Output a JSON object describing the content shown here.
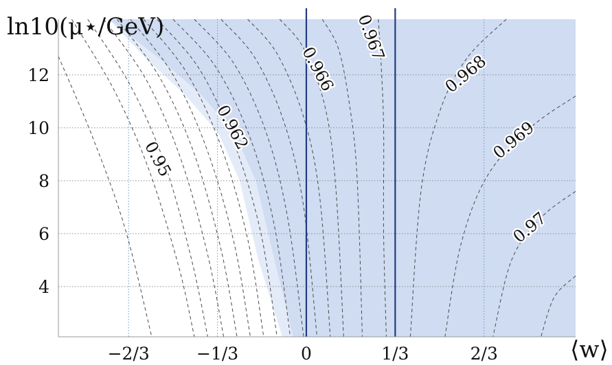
{
  "chart_data": {
    "type": "contour",
    "title": "",
    "xlabel": "⟨w⟩",
    "ylabel": "ln10(μ⋆/GeV)",
    "xlim": [
      -0.93,
      1.01
    ],
    "ylim": [
      2.1,
      14.1
    ],
    "x_ticks": [
      {
        "value": -0.6667,
        "label": "−2/3"
      },
      {
        "value": -0.3333,
        "label": "−1/3"
      },
      {
        "value": 0,
        "label": "0"
      },
      {
        "value": 0.3333,
        "label": "1/3"
      },
      {
        "value": 0.6667,
        "label": "2/3"
      }
    ],
    "y_ticks": [
      {
        "value": 4,
        "label": "4"
      },
      {
        "value": 6,
        "label": "6"
      },
      {
        "value": 8,
        "label": "8"
      },
      {
        "value": 10,
        "label": "10"
      },
      {
        "value": 12,
        "label": "12"
      }
    ],
    "grid": true,
    "boundaries_x": [
      0,
      0.3333
    ],
    "shading": {
      "color": "#cfdcf2",
      "light_color": "#e4ebf8",
      "region": [
        [
          -0.74,
          14.1
        ],
        [
          -0.55,
          12.6
        ],
        [
          -0.4,
          11.3
        ],
        [
          -0.27,
          9.8
        ],
        [
          -0.19,
          8.0
        ],
        [
          -0.12,
          5.0
        ],
        [
          -0.05,
          2.1
        ],
        [
          1.01,
          2.1
        ],
        [
          1.01,
          14.1
        ]
      ],
      "light_band": [
        [
          -0.74,
          14.1
        ],
        [
          -0.6,
          12.6
        ],
        [
          -0.46,
          11.3
        ],
        [
          -0.33,
          9.8
        ],
        [
          -0.25,
          8.0
        ],
        [
          -0.18,
          5.0
        ],
        [
          -0.09,
          2.1
        ],
        [
          -0.05,
          2.1
        ],
        [
          -0.12,
          5.0
        ],
        [
          -0.19,
          8.0
        ],
        [
          -0.27,
          9.8
        ],
        [
          -0.4,
          11.3
        ],
        [
          -0.55,
          12.6
        ]
      ]
    },
    "contours": [
      {
        "points": [
          [
            -0.93,
            12.7
          ],
          [
            -0.8,
            9.6
          ],
          [
            -0.68,
            6.2
          ],
          [
            -0.58,
            2.1
          ]
        ]
      },
      {
        "level": "0.95",
        "points": [
          [
            -0.88,
            14.1
          ],
          [
            -0.72,
            11.4
          ],
          [
            -0.59,
            8.4
          ],
          [
            -0.48,
            4.8
          ],
          [
            -0.42,
            2.1
          ]
        ]
      },
      {
        "points": [
          [
            -0.82,
            14.1
          ],
          [
            -0.66,
            11.6
          ],
          [
            -0.53,
            8.6
          ],
          [
            -0.43,
            5.0
          ],
          [
            -0.37,
            2.1
          ]
        ]
      },
      {
        "points": [
          [
            -0.76,
            14.1
          ],
          [
            -0.6,
            11.8
          ],
          [
            -0.47,
            8.8
          ],
          [
            -0.37,
            5.2
          ],
          [
            -0.31,
            2.1
          ]
        ]
      },
      {
        "points": [
          [
            -0.71,
            14.1
          ],
          [
            -0.55,
            11.9
          ],
          [
            -0.42,
            9.0
          ],
          [
            -0.32,
            5.4
          ],
          [
            -0.26,
            2.1
          ]
        ]
      },
      {
        "points": [
          [
            -0.66,
            14.1
          ],
          [
            -0.5,
            12.0
          ],
          [
            -0.37,
            9.1
          ],
          [
            -0.27,
            5.6
          ],
          [
            -0.21,
            2.1
          ]
        ]
      },
      {
        "level": "0.962",
        "points": [
          [
            -0.61,
            14.1
          ],
          [
            -0.45,
            12.1
          ],
          [
            -0.32,
            9.3
          ],
          [
            -0.22,
            5.8
          ],
          [
            -0.16,
            2.1
          ]
        ]
      },
      {
        "points": [
          [
            -0.56,
            14.1
          ],
          [
            -0.4,
            12.2
          ],
          [
            -0.27,
            9.4
          ],
          [
            -0.17,
            6.0
          ],
          [
            -0.11,
            2.1
          ]
        ]
      },
      {
        "points": [
          [
            -0.5,
            14.1
          ],
          [
            -0.34,
            12.3
          ],
          [
            -0.21,
            9.6
          ],
          [
            -0.12,
            6.3
          ],
          [
            -0.06,
            2.1
          ]
        ]
      },
      {
        "points": [
          [
            -0.42,
            14.1
          ],
          [
            -0.27,
            12.4
          ],
          [
            -0.15,
            9.8
          ],
          [
            -0.07,
            6.6
          ],
          [
            -0.01,
            2.1
          ]
        ]
      },
      {
        "points": [
          [
            -0.32,
            14.1
          ],
          [
            -0.19,
            12.6
          ],
          [
            -0.08,
            10.1
          ],
          [
            -0.01,
            7.0
          ],
          [
            0.04,
            2.1
          ]
        ]
      },
      {
        "points": [
          [
            -0.22,
            14.1
          ],
          [
            -0.11,
            12.8
          ],
          [
            -0.01,
            10.4
          ],
          [
            0.05,
            7.4
          ],
          [
            0.09,
            2.1
          ]
        ]
      },
      {
        "level": "0.966",
        "points": [
          [
            -0.1,
            14.1
          ],
          [
            -0.01,
            13.0
          ],
          [
            0.07,
            10.8
          ],
          [
            0.11,
            7.8
          ],
          [
            0.14,
            2.1
          ]
        ]
      },
      {
        "points": [
          [
            0.06,
            14.1
          ],
          [
            0.12,
            13.0
          ],
          [
            0.16,
            11.0
          ],
          [
            0.19,
            8.2
          ],
          [
            0.21,
            2.1
          ]
        ]
      },
      {
        "level": "0.967",
        "points": [
          [
            0.27,
            14.1
          ],
          [
            0.28,
            12.5
          ],
          [
            0.29,
            10.0
          ],
          [
            0.29,
            6.0
          ],
          [
            0.3,
            2.1
          ]
        ]
      },
      {
        "level": "0.968",
        "points": [
          [
            0.75,
            14.1
          ],
          [
            0.6,
            12.6
          ],
          [
            0.5,
            10.6
          ],
          [
            0.43,
            7.6
          ],
          [
            0.39,
            2.1
          ]
        ]
      },
      {
        "level": "0.969",
        "points": [
          [
            1.01,
            11.2
          ],
          [
            0.84,
            10.0
          ],
          [
            0.68,
            8.2
          ],
          [
            0.58,
            5.6
          ],
          [
            0.52,
            2.1
          ]
        ]
      },
      {
        "level": "0.97",
        "points": [
          [
            1.01,
            7.6
          ],
          [
            0.88,
            6.6
          ],
          [
            0.77,
            5.0
          ],
          [
            0.7,
            2.1
          ]
        ]
      },
      {
        "points": [
          [
            1.01,
            4.4
          ],
          [
            0.93,
            3.6
          ],
          [
            0.88,
            2.1
          ]
        ]
      }
    ],
    "contour_labels": [
      {
        "text": "0.95",
        "x": -0.56,
        "y": 8.8,
        "angle": 62
      },
      {
        "text": "0.962",
        "x": -0.28,
        "y": 10.0,
        "angle": 62
      },
      {
        "text": "0.966",
        "x": 0.04,
        "y": 12.2,
        "angle": 62
      },
      {
        "text": "0.967",
        "x": 0.24,
        "y": 13.4,
        "angle": 70
      },
      {
        "text": "0.968",
        "x": 0.6,
        "y": 12.0,
        "angle": -40
      },
      {
        "text": "0.969",
        "x": 0.78,
        "y": 9.5,
        "angle": -40
      },
      {
        "text": "0.97",
        "x": 0.84,
        "y": 6.2,
        "angle": -40
      }
    ]
  }
}
